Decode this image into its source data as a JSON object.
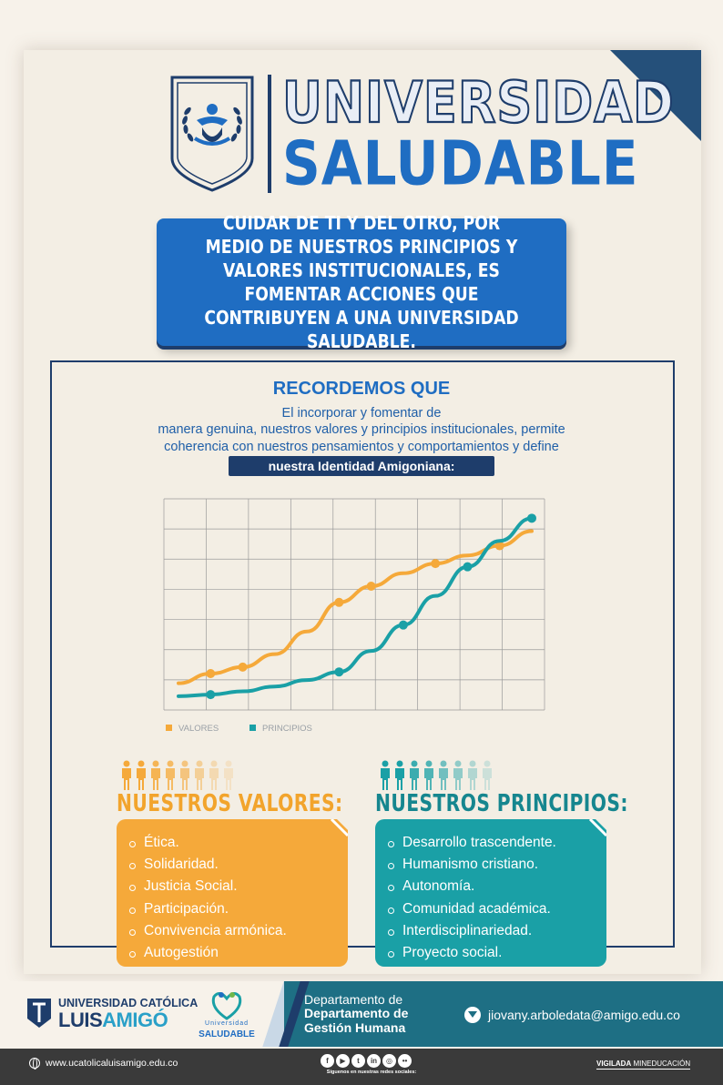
{
  "header": {
    "title_line1": "UNIVERSIDAD",
    "title_line2": "SALUDABLE"
  },
  "intro": "CUIDAR DE TI Y DEL OTRO, POR MEDIO DE NUESTROS PRINCIPIOS Y VALORES INSTITUCIONALES, ES FOMENTAR ACCIONES QUE CONTRIBUYEN A UNA UNIVERSIDAD SALUDABLE.",
  "reminder": {
    "title": "RECORDEMOS QUE",
    "text_line1": "El incorporar y fomentar de",
    "text_line2": "manera genuina, nuestros valores y principios institucionales, permite",
    "text_line3": "coherencia con nuestros pensamientos y  comportamientos y define",
    "highlight": "nuestra Identidad Amigoniana:"
  },
  "chart_data": {
    "type": "line",
    "x": [
      0,
      1,
      2,
      3,
      4,
      5,
      6,
      7,
      8,
      9,
      10,
      11
    ],
    "series": [
      {
        "name": "VALORES",
        "color": "#f5a93a",
        "values": [
          0.6,
          0.9,
          1.1,
          1.5,
          2.2,
          3.1,
          3.6,
          4.0,
          4.3,
          4.55,
          4.85,
          5.3
        ]
      },
      {
        "name": "PRINCIPIOS",
        "color": "#1aa0a6",
        "values": [
          0.2,
          0.25,
          0.35,
          0.5,
          0.7,
          0.95,
          1.6,
          2.4,
          3.3,
          4.2,
          5.0,
          5.7
        ]
      }
    ],
    "markers": {
      "VALORES": [
        1,
        2,
        5,
        6,
        8,
        10
      ],
      "PRINCIPIOS": [
        1,
        5,
        7,
        9,
        11
      ]
    },
    "grid": true,
    "ylim": [
      0,
      6.3
    ],
    "legend_position": "bottom-left"
  },
  "values_section": {
    "title": "NUESTROS VALORES:",
    "items": [
      "Ética.",
      "Solidaridad.",
      "Justicia Social.",
      "Participación.",
      "Convivencia armónica.",
      "Autogestión"
    ],
    "color": "#f5a93a"
  },
  "principles_section": {
    "title": "NUESTROS PRINCIPIOS:",
    "items": [
      "Desarrollo trascendente.",
      "Humanismo cristiano.",
      "Autonomía.",
      "Comunidad académica.",
      "Interdisciplinariedad.",
      "Proyecto social."
    ],
    "color": "#1aa0a6"
  },
  "footer": {
    "logo_line1": "UNIVERSIDAD CATÓLICA",
    "logo_line2a": "LUIS",
    "logo_line2b": "AMIGÓ",
    "logo2_small": "Universidad",
    "logo2_big": "SALUDABLE",
    "dept_line1": "Departamento de",
    "dept_line2": "Departamento de Gestión Humana",
    "email": "jiovany.arboledata@amigo.edu.co",
    "website": "www.ucatolicaluisamigo.edu.co",
    "social_icons": [
      "facebook-icon",
      "youtube-icon",
      "twitter-icon",
      "linkedin-icon",
      "instagram-icon",
      "flickr-icon"
    ],
    "follow": "Síguenos en nuestras redes sociales:",
    "vigilada_bold": "VIGILADA",
    "vigilada_rest": " MINEDUCACIÓN"
  }
}
